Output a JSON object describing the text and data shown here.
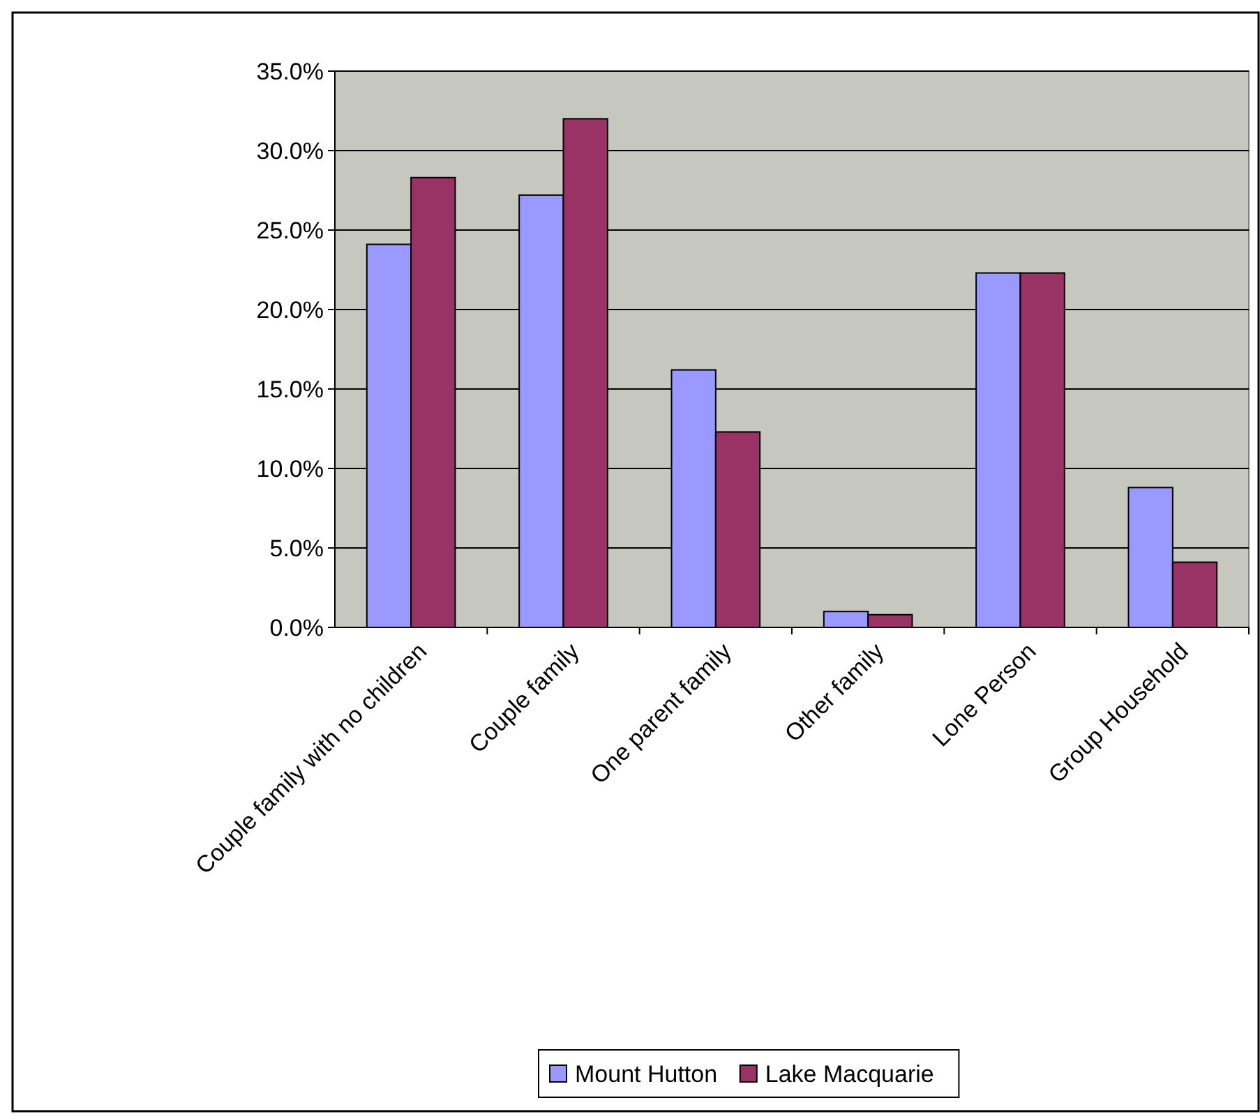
{
  "chart_data": {
    "type": "bar",
    "categories": [
      "Couple family with no children",
      "Couple family",
      "One parent family",
      "Other family",
      "Lone Person",
      "Group Household"
    ],
    "series": [
      {
        "name": "Mount Hutton",
        "color": "#9999ff",
        "values": [
          24.1,
          27.2,
          16.2,
          1.0,
          22.3,
          8.8
        ]
      },
      {
        "name": "Lake Macquarie",
        "color": "#993366",
        "values": [
          28.3,
          32.0,
          12.3,
          0.8,
          22.3,
          4.1
        ]
      }
    ],
    "ylim": [
      0,
      35
    ],
    "yticks": [
      {
        "value": 0,
        "label": "0.0%"
      },
      {
        "value": 5,
        "label": "5.0%"
      },
      {
        "value": 10,
        "label": "10.0%"
      },
      {
        "value": 15,
        "label": "15.0%"
      },
      {
        "value": 20,
        "label": "20.0%"
      },
      {
        "value": 25,
        "label": "25.0%"
      },
      {
        "value": 30,
        "label": "30.0%"
      },
      {
        "value": 35,
        "label": "35.0%"
      }
    ],
    "grid": "y",
    "legend": "bottom"
  }
}
